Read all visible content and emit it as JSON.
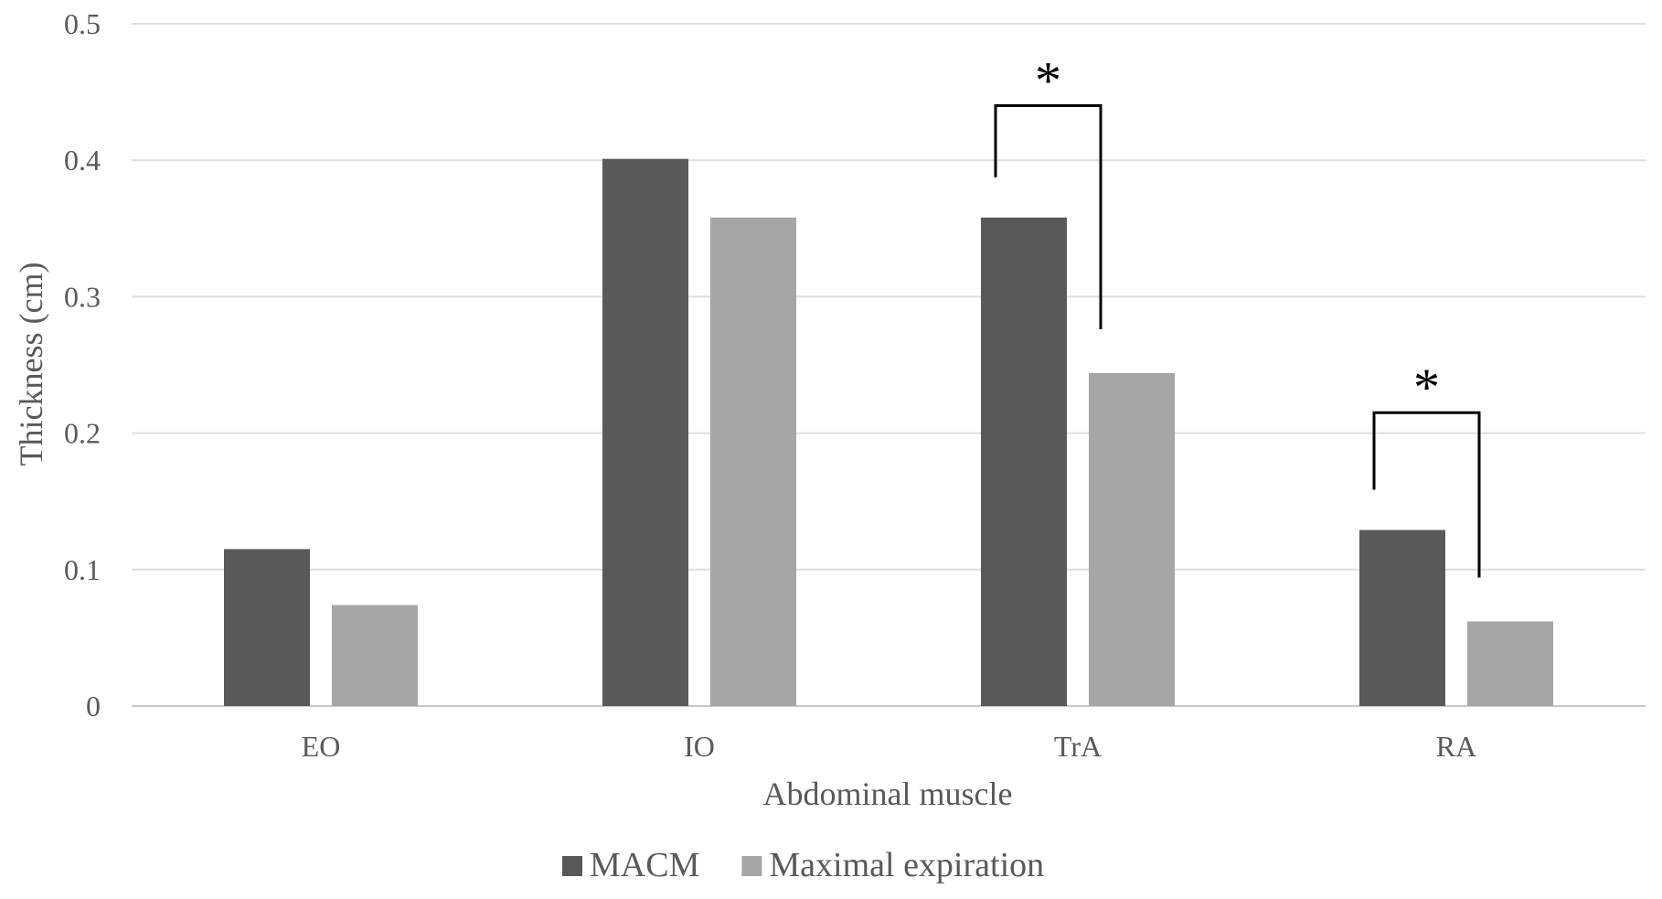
{
  "chart_data": {
    "type": "bar",
    "title": "",
    "xlabel": "Abdominal muscle",
    "ylabel": "Thickness (cm)",
    "ylim": [
      0,
      0.5
    ],
    "yticks": [
      0,
      0.1,
      0.2,
      0.3,
      0.4,
      0.5
    ],
    "ytick_labels": [
      "0",
      "0.1",
      "0.2",
      "0.3",
      "0.4",
      "0.5"
    ],
    "grid": true,
    "legend_position": "bottom",
    "categories": [
      "EO",
      "IO",
      "TrA",
      "RA"
    ],
    "series": [
      {
        "name": "MACM",
        "color": "#595959",
        "values": [
          0.115,
          0.401,
          0.358,
          0.129
        ]
      },
      {
        "name": "Maximal expiration",
        "color": "#a6a6a6",
        "values": [
          0.074,
          0.358,
          0.244,
          0.062
        ]
      }
    ],
    "significance": [
      {
        "category": "TrA",
        "label": "*",
        "bracket_top": 0.44
      },
      {
        "category": "RA",
        "label": "*",
        "bracket_top": 0.215
      }
    ]
  }
}
